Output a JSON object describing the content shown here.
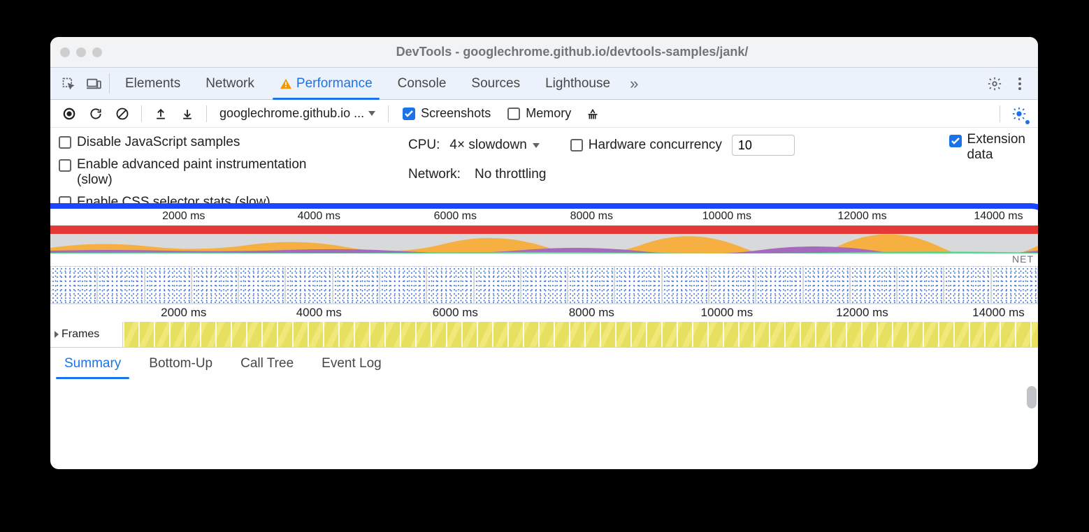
{
  "window": {
    "title_prefix": "DevTools - ",
    "title_url": "googlechrome.github.io/devtools-samples/jank/"
  },
  "panel_tabs": {
    "items": [
      "Elements",
      "Network",
      "Performance",
      "Console",
      "Sources",
      "Lighthouse"
    ],
    "active_index": 2,
    "has_warning_on_active": true
  },
  "toolbar": {
    "origin_dropdown": "googlechrome.github.io ...",
    "screenshots": {
      "label": "Screenshots",
      "checked": true
    },
    "memory": {
      "label": "Memory",
      "checked": false
    }
  },
  "settings": {
    "disable_js_samples": {
      "label": "Disable JavaScript samples",
      "checked": false
    },
    "paint_instr": {
      "label": "Enable advanced paint instrumentation (slow)",
      "checked": false
    },
    "css_stats": {
      "label": "Enable CSS selector stats (slow)",
      "checked": false
    },
    "cpu": {
      "label": "CPU:",
      "value": "4× slowdown"
    },
    "hw_concurrency": {
      "label": "Hardware concurrency",
      "checked": false,
      "value": "10"
    },
    "extension_data": {
      "label1": "Extension",
      "label2": "data",
      "checked": true
    },
    "network": {
      "label": "Network:",
      "value": "No throttling"
    }
  },
  "timeline": {
    "ruler_ticks": [
      "2000 ms",
      "4000 ms",
      "6000 ms",
      "8000 ms",
      "10000 ms",
      "12000 ms",
      "14000 ms"
    ],
    "tick_positions_pct": [
      13.5,
      27.2,
      41.0,
      54.8,
      68.5,
      82.2,
      96.0
    ],
    "redbar_color": "#e53935",
    "highlight_border_color": "#1a46ff",
    "cpu_colors": {
      "script": "#f5b041",
      "render": "#a569bd",
      "paint": "#58d68d",
      "bg": "#d7d9db"
    },
    "net_label": "NET",
    "thumbnail_count": 21,
    "frames_label": "Frames",
    "flame_base": "#e7df60",
    "flame_stripe": "#f0e97a"
  },
  "bottom_tabs": {
    "items": [
      "Summary",
      "Bottom-Up",
      "Call Tree",
      "Event Log"
    ],
    "active_index": 0
  },
  "colors": {
    "accent": "#1a73e8",
    "text": "#202124",
    "muted": "#5f6368",
    "panel_bg": "#ecf2fb"
  }
}
